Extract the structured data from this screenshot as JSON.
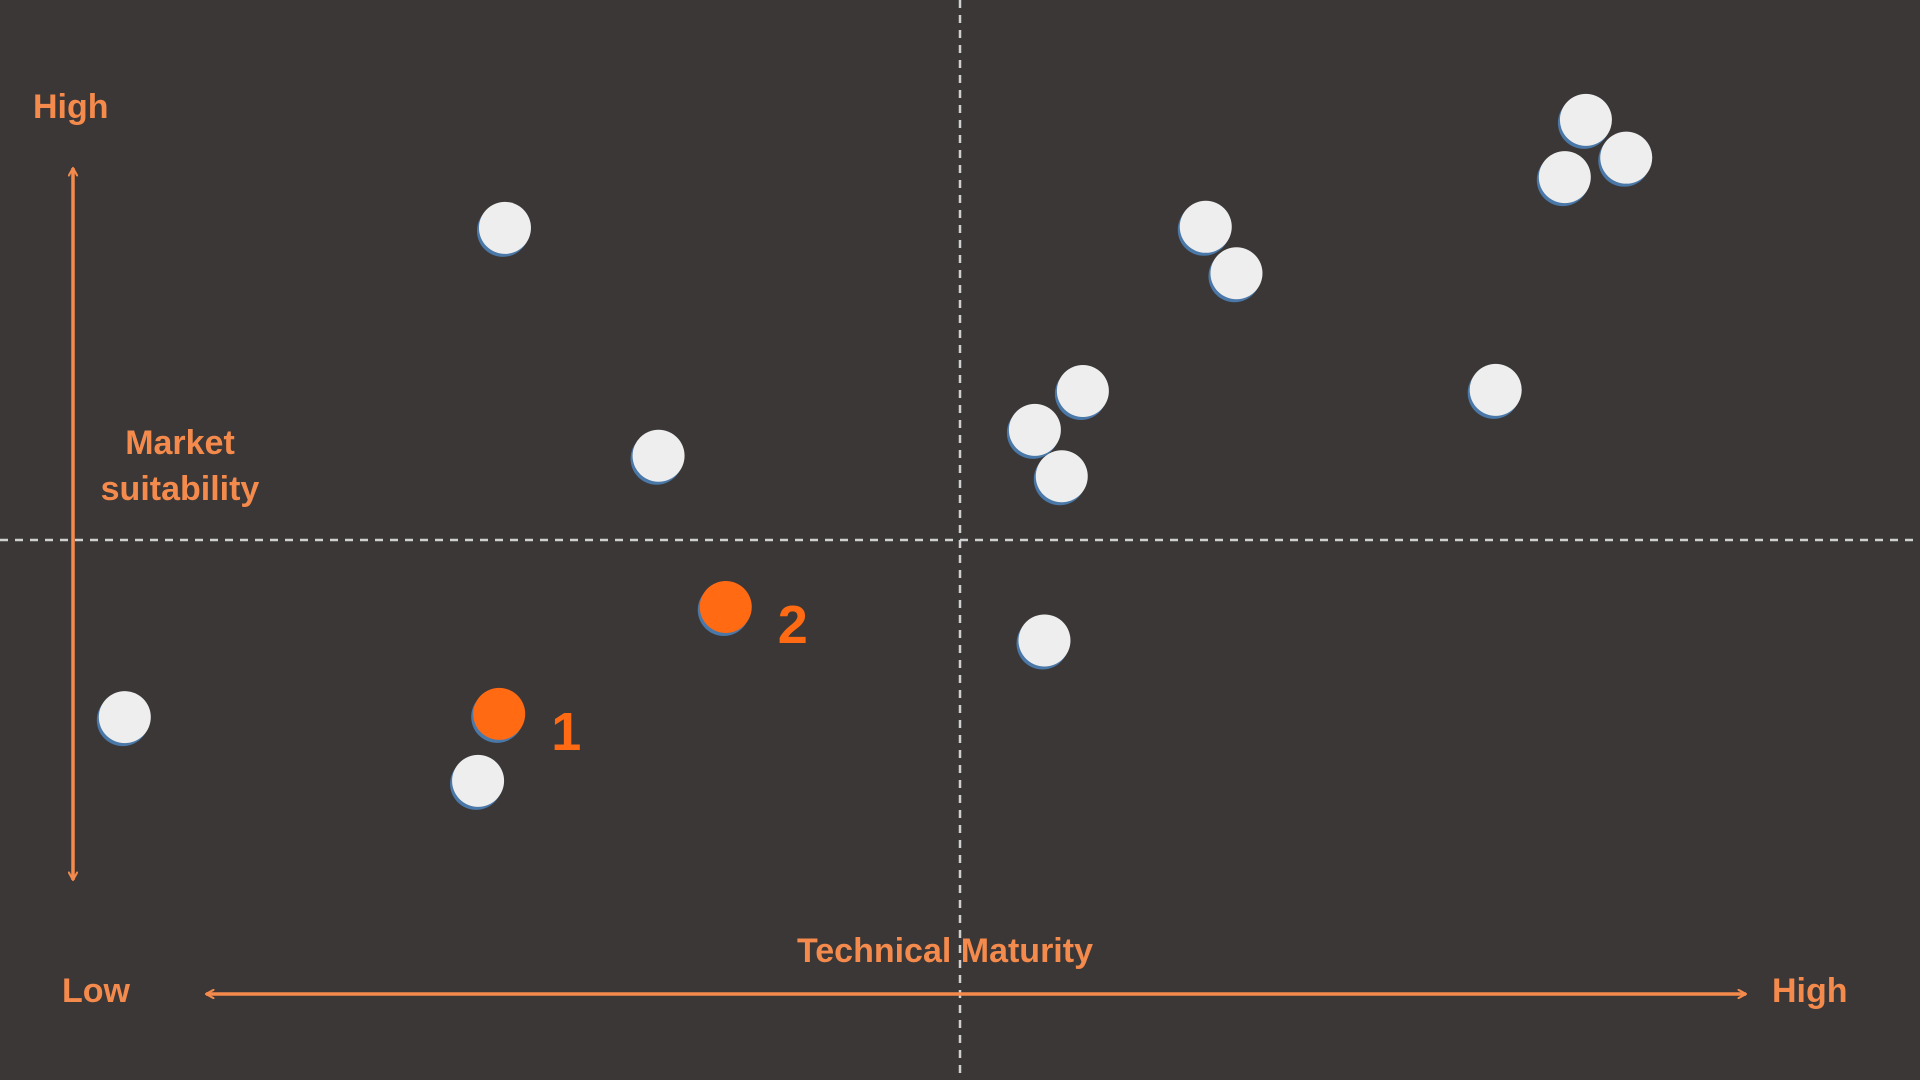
{
  "colors": {
    "background": "#3b3737",
    "accent": "#f48a4c",
    "highlight": "#ff6a13",
    "point": "#eeeeee",
    "point_shadow": "#4a78a8",
    "divider": "#d0d0d0"
  },
  "chart_data": {
    "type": "scatter",
    "title": "",
    "xlabel": "Technical Maturity",
    "ylabel": "Market suitability",
    "x_low_label": "Low",
    "x_high_label": "High",
    "y_high_label": "High",
    "xlim": [
      0,
      100
    ],
    "ylim": [
      0,
      100
    ],
    "quadrant_divider": {
      "x": 50,
      "y": 50
    },
    "grid": false,
    "legend": "none",
    "series": [
      {
        "values": [
          {
            "x": 26.3,
            "y": 78.9
          },
          {
            "x": 34.3,
            "y": 57.8
          },
          {
            "x": 6.5,
            "y": 33.6
          },
          {
            "x": 24.9,
            "y": 27.7
          },
          {
            "x": 62.8,
            "y": 79.0
          },
          {
            "x": 64.4,
            "y": 74.7
          },
          {
            "x": 82.6,
            "y": 88.9
          },
          {
            "x": 84.7,
            "y": 85.4
          },
          {
            "x": 81.5,
            "y": 83.6
          },
          {
            "x": 56.4,
            "y": 63.8
          },
          {
            "x": 53.9,
            "y": 60.2
          },
          {
            "x": 55.3,
            "y": 55.9
          },
          {
            "x": 77.9,
            "y": 63.9
          },
          {
            "x": 54.4,
            "y": 40.7
          }
        ]
      },
      {
        "highlight": true,
        "values": [
          {
            "x": 26.0,
            "y": 33.9,
            "label": "1"
          },
          {
            "x": 37.8,
            "y": 43.8,
            "label": "2"
          }
        ]
      }
    ]
  }
}
